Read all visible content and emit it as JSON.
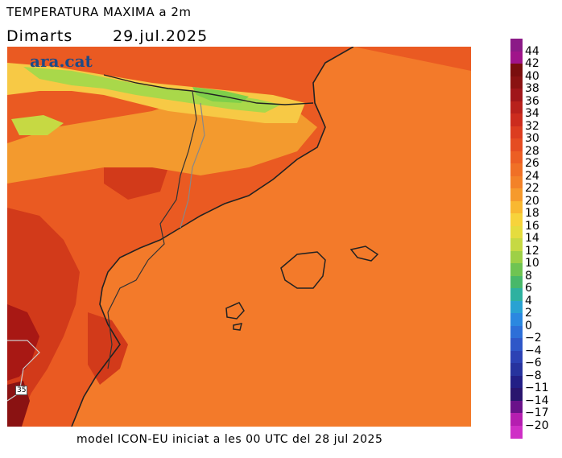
{
  "header": {
    "title": "TEMPERATURA MAXIMA a 2m",
    "day": "Dimarts",
    "date": "29.jul.2025"
  },
  "map": {
    "brand": "ara.cat",
    "marker_label": "35",
    "colors": {
      "sea": "#f37a2a",
      "land_hot": "#ea5a22",
      "land_very_hot": "#d23a1a",
      "land_extreme": "#a81814",
      "land_warm": "#f39a2e",
      "mountain_mild": "#f7c945",
      "mountain_cool": "#a9d84a",
      "mountain_cold": "#7fcf4a",
      "coast_line": "#222222",
      "border_line": "#888888"
    }
  },
  "colorbar": {
    "labels": [
      "44",
      "42",
      "40",
      "38",
      "36",
      "34",
      "32",
      "30",
      "28",
      "26",
      "24",
      "22",
      "20",
      "18",
      "16",
      "14",
      "12",
      "10",
      "8",
      "6",
      "4",
      "2",
      "0",
      "−2",
      "−4",
      "−6",
      "−8",
      "−11",
      "−14",
      "−17",
      "−20"
    ],
    "colors": [
      "#8b1a87",
      "#a0148a",
      "#7a0e0e",
      "#8a1212",
      "#a0161a",
      "#b8211c",
      "#cc2c1e",
      "#dc3d20",
      "#e54c22",
      "#ec5e24",
      "#f07026",
      "#f38228",
      "#f69a2c",
      "#f9b831",
      "#f7d33b",
      "#e5dc3e",
      "#c6d943",
      "#9ed046",
      "#6fc452",
      "#48b86a",
      "#2eb1a0",
      "#29a2d2",
      "#2b88e0",
      "#2d6fd8",
      "#2f57c8",
      "#2c42b4",
      "#27339e",
      "#231f86",
      "#2a156e",
      "#6a128a",
      "#b51eb0",
      "#cf2fc6"
    ]
  },
  "footer": {
    "text": "model ICON-EU iniciat a les 00 UTC del 28 jul 2025"
  }
}
